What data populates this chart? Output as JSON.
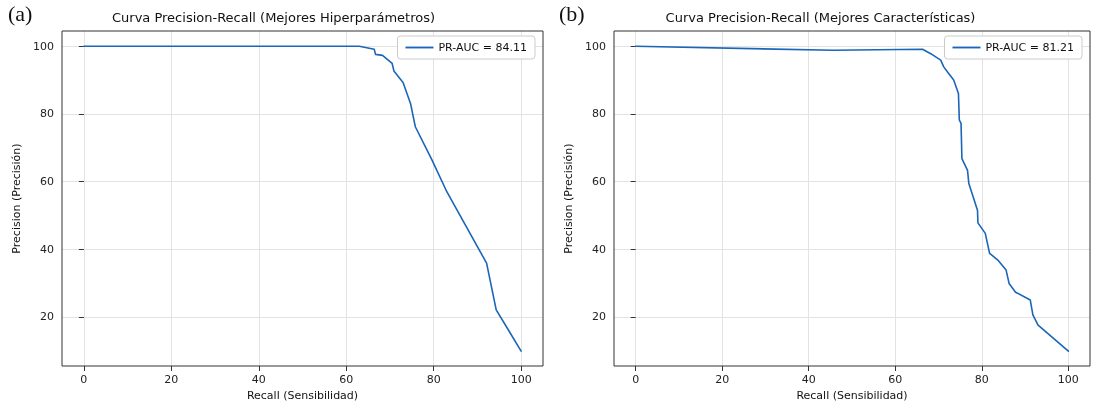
{
  "chart_data": [
    {
      "type": "line",
      "title": "Curva Precision-Recall (Mejores Hiperparámetros)",
      "xlabel": "Recall (Sensibilidad)",
      "ylabel": "Precision (Precisión)",
      "annotations": [
        "(a)"
      ],
      "series": [
        {
          "name": "PR-AUC = 84.11",
          "color": "#1a66b8",
          "x": [
            0,
            63.0,
            66.4,
            66.7,
            68.3,
            70.5,
            70.9,
            73.0,
            74.7,
            75.8,
            79.6,
            83.0,
            92.1,
            94.3,
            100
          ],
          "values": [
            100,
            100,
            99.1,
            97.6,
            97.3,
            94.9,
            92.7,
            89.3,
            83.1,
            76.2,
            66.4,
            57.0,
            35.9,
            22.1,
            9.9
          ]
        }
      ],
      "xlim": [
        -5,
        105
      ],
      "xticks": [
        0,
        20,
        40,
        60,
        80,
        100
      ],
      "ylim": [
        5.5,
        104.5
      ],
      "yticks": [
        20,
        40,
        60,
        80,
        100
      ],
      "grid": true,
      "legend": "top right",
      "marker": "none",
      "line_style": "solid"
    },
    {
      "type": "line",
      "title": "Curva Precision-Recall (Mejores Características)",
      "xlabel": "Recall (Sensibilidad)",
      "ylabel": "Precision (Precisión)",
      "annotations": [
        "(b)"
      ],
      "series": [
        {
          "name": "PR-AUC = 81.21",
          "color": "#1a66b8",
          "x": [
            0,
            45.6,
            66.3,
            68.2,
            70.5,
            71.2,
            72.3,
            73.5,
            74.6,
            74.8,
            75.2,
            75.4,
            76.7,
            77.0,
            79.0,
            79.1,
            80.8,
            81.8,
            83.7,
            85.6,
            86.3,
            87.8,
            91.2,
            91.8,
            93.0,
            100
          ],
          "values": [
            100,
            98.8,
            99.1,
            97.8,
            95.9,
            93.9,
            92.0,
            90.0,
            86.0,
            78.2,
            77.2,
            66.8,
            63.3,
            59.4,
            51.5,
            47.8,
            44.7,
            38.8,
            36.8,
            33.9,
            29.9,
            27.3,
            25.0,
            20.6,
            17.6,
            9.9
          ]
        }
      ],
      "xlim": [
        -5,
        105
      ],
      "xticks": [
        0,
        20,
        40,
        60,
        80,
        100
      ],
      "ylim": [
        5.5,
        104.5
      ],
      "yticks": [
        20,
        40,
        60,
        80,
        100
      ],
      "grid": true,
      "legend": "top right",
      "marker": "none",
      "line_style": "solid"
    }
  ]
}
